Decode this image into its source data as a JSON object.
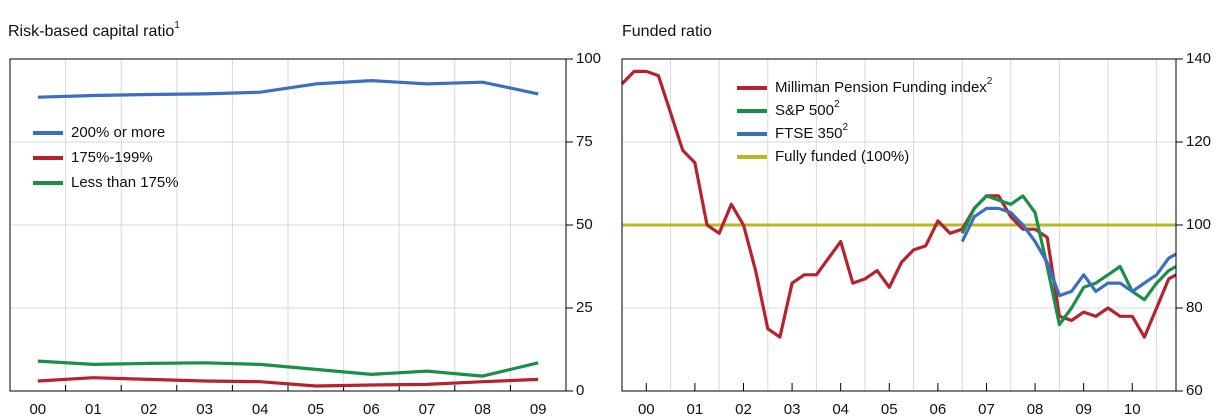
{
  "chart_data": [
    {
      "type": "line",
      "title": "Risk-based capital ratio",
      "title_footnote": "1",
      "categories": [
        "00",
        "01",
        "02",
        "03",
        "04",
        "05",
        "06",
        "07",
        "08",
        "09"
      ],
      "series": [
        {
          "name": "200% or more",
          "color": "#3b6fbf",
          "values": [
            88.5,
            89,
            89.3,
            89.5,
            90,
            92.5,
            93.5,
            92.5,
            93,
            89.5
          ]
        },
        {
          "name": "175%-199%",
          "color": "#b5232f",
          "values": [
            3,
            4,
            3.5,
            3,
            2.8,
            1.5,
            1.8,
            2,
            2.8,
            3.5
          ]
        },
        {
          "name": "Less than 175%",
          "color": "#1a8f4a",
          "values": [
            9,
            8,
            8.3,
            8.5,
            8,
            6.5,
            5,
            6,
            4.5,
            8.5
          ]
        }
      ],
      "ylim": [
        0,
        100
      ],
      "yticks": [
        0,
        25,
        50,
        75,
        100
      ],
      "grid": true,
      "legend": "upper-left"
    },
    {
      "type": "line",
      "title": "Funded ratio",
      "x": [
        2000,
        2000.25,
        2000.5,
        2000.75,
        2001,
        2001.25,
        2001.5,
        2001.75,
        2002,
        2002.25,
        2002.5,
        2002.75,
        2003,
        2003.25,
        2003.5,
        2003.75,
        2004,
        2004.25,
        2004.5,
        2004.75,
        2005,
        2005.25,
        2005.5,
        2005.75,
        2006,
        2006.25,
        2006.5,
        2006.75,
        2007,
        2007.25,
        2007.5,
        2007.75,
        2008,
        2008.25,
        2008.5,
        2008.75,
        2009,
        2009.25,
        2009.5,
        2009.75,
        2010,
        2010.25,
        2010.5,
        2010.75,
        2011,
        2011.25,
        2011.4
      ],
      "series": [
        {
          "name": "Milliman Pension Funding index",
          "footnote": "2",
          "color": "#b5232f",
          "values": [
            134,
            137,
            137,
            136,
            127,
            118,
            115,
            100,
            98,
            105,
            100,
            89,
            75,
            73,
            86,
            88,
            88,
            92,
            96,
            86,
            87,
            89,
            85,
            91,
            94,
            95,
            101,
            98,
            99,
            104,
            107,
            107,
            102,
            99,
            99,
            97,
            78,
            77,
            79,
            78,
            80,
            78,
            78,
            73,
            80,
            87,
            88
          ]
        },
        {
          "name": "S&P 500",
          "footnote": "2",
          "color": "#1a8f4a",
          "values": [
            null,
            null,
            null,
            null,
            null,
            null,
            null,
            null,
            null,
            null,
            null,
            null,
            null,
            null,
            null,
            null,
            null,
            null,
            null,
            null,
            null,
            null,
            null,
            null,
            null,
            null,
            null,
            null,
            98,
            104,
            107,
            106,
            105,
            107,
            103,
            90,
            76,
            80,
            85,
            86,
            88,
            90,
            84,
            82,
            86,
            89,
            90
          ]
        },
        {
          "name": "FTSE 350",
          "footnote": "2",
          "color": "#3b6fbf",
          "values": [
            null,
            null,
            null,
            null,
            null,
            null,
            null,
            null,
            null,
            null,
            null,
            null,
            null,
            null,
            null,
            null,
            null,
            null,
            null,
            null,
            null,
            null,
            null,
            null,
            null,
            null,
            null,
            null,
            96,
            102,
            104,
            104,
            103,
            100,
            96,
            91,
            83,
            84,
            88,
            84,
            86,
            86,
            84,
            86,
            88,
            92,
            93
          ]
        }
      ],
      "reference_line": {
        "name": "Fully funded (100%)",
        "color": "#b8b820",
        "value": 100
      },
      "xlim": [
        2000,
        2011.4
      ],
      "xticks": [
        {
          "value": 2000.5,
          "label": "00"
        },
        {
          "value": 2001.5,
          "label": "01"
        },
        {
          "value": 2002.5,
          "label": "02"
        },
        {
          "value": 2003.5,
          "label": "03"
        },
        {
          "value": 2004.5,
          "label": "04"
        },
        {
          "value": 2005.5,
          "label": "05"
        },
        {
          "value": 2006.5,
          "label": "06"
        },
        {
          "value": 2007.5,
          "label": "07"
        },
        {
          "value": 2008.5,
          "label": "08"
        },
        {
          "value": 2009.5,
          "label": "09"
        },
        {
          "value": 2010.5,
          "label": "10"
        }
      ],
      "ylim": [
        60,
        140
      ],
      "yticks": [
        60,
        80,
        100,
        120,
        140
      ],
      "grid": true,
      "legend": "upper-left"
    }
  ]
}
